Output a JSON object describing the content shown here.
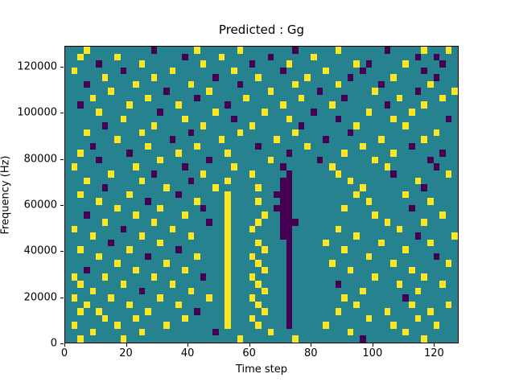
{
  "chart_data": {
    "type": "heatmap",
    "title": "Predicted : Gg",
    "xlabel": "Time step",
    "ylabel": "Frequency (Hz)",
    "x_range": [
      0,
      128
    ],
    "y_range": [
      0,
      129000
    ],
    "x_ticks": [
      0,
      20,
      40,
      60,
      80,
      100,
      120
    ],
    "y_ticks": [
      0,
      20000,
      40000,
      60000,
      80000,
      100000,
      120000
    ],
    "grid": {
      "cols": 64,
      "rows": 43
    },
    "colors": {
      "mid": "#26828e",
      "high": "#fde725",
      "low": "#440154",
      "figure_bg": "#ffffff",
      "axis": "#000000"
    },
    "value_map": {
      "mid": 0,
      "high": 1,
      "low": -1
    },
    "legend": "none",
    "yellow_cells": [
      [
        0,
        3
      ],
      [
        0,
        21
      ],
      [
        0,
        28
      ],
      [
        0,
        44
      ],
      [
        0,
        58
      ],
      [
        0,
        62
      ],
      [
        1,
        2
      ],
      [
        1,
        8
      ],
      [
        1,
        25
      ],
      [
        1,
        40
      ],
      [
        2,
        12
      ],
      [
        2,
        22
      ],
      [
        2,
        36
      ],
      [
        2,
        47
      ],
      [
        2,
        55
      ],
      [
        3,
        1
      ],
      [
        3,
        17
      ],
      [
        3,
        27
      ],
      [
        3,
        42
      ],
      [
        4,
        6
      ],
      [
        4,
        14
      ],
      [
        4,
        31
      ],
      [
        4,
        39
      ],
      [
        4,
        53
      ],
      [
        5,
        11
      ],
      [
        5,
        20
      ],
      [
        5,
        37
      ],
      [
        5,
        44
      ],
      [
        5,
        59
      ],
      [
        6,
        7
      ],
      [
        6,
        23
      ],
      [
        6,
        33
      ],
      [
        6,
        50
      ],
      [
        6,
        63
      ],
      [
        7,
        4
      ],
      [
        7,
        13
      ],
      [
        7,
        29
      ],
      [
        7,
        38
      ],
      [
        7,
        54
      ],
      [
        7,
        61
      ],
      [
        8,
        10
      ],
      [
        8,
        18
      ],
      [
        8,
        35
      ],
      [
        8,
        43
      ],
      [
        8,
        58
      ],
      [
        9,
        5
      ],
      [
        9,
        24
      ],
      [
        9,
        32
      ],
      [
        9,
        49
      ],
      [
        9,
        56
      ],
      [
        10,
        9
      ],
      [
        10,
        19
      ],
      [
        10,
        36
      ],
      [
        10,
        53
      ],
      [
        11,
        14
      ],
      [
        11,
        22
      ],
      [
        11,
        30
      ],
      [
        11,
        47
      ],
      [
        11,
        55
      ],
      [
        12,
        3
      ],
      [
        12,
        12
      ],
      [
        12,
        28
      ],
      [
        12,
        37
      ],
      [
        12,
        60
      ],
      [
        13,
        8
      ],
      [
        13,
        25
      ],
      [
        13,
        34
      ],
      [
        13,
        51
      ],
      [
        13,
        58
      ],
      [
        14,
        13
      ],
      [
        14,
        21
      ],
      [
        14,
        39
      ],
      [
        14,
        48
      ],
      [
        15,
        2
      ],
      [
        15,
        18
      ],
      [
        15,
        26
      ],
      [
        15,
        45
      ],
      [
        15,
        53
      ],
      [
        16,
        15
      ],
      [
        16,
        33
      ],
      [
        16,
        50
      ],
      [
        17,
        1
      ],
      [
        17,
        11
      ],
      [
        17,
        27
      ],
      [
        17,
        43
      ],
      [
        17,
        52
      ],
      [
        18,
        7
      ],
      [
        18,
        22
      ],
      [
        18,
        30
      ],
      [
        18,
        44
      ],
      [
        18,
        62
      ],
      [
        19,
        3
      ],
      [
        19,
        12
      ],
      [
        19,
        26
      ],
      [
        19,
        46
      ],
      [
        19,
        57
      ],
      [
        20,
        16
      ],
      [
        20,
        24
      ],
      [
        20,
        31
      ],
      [
        20,
        48
      ],
      [
        21,
        2
      ],
      [
        21,
        10
      ],
      [
        21,
        26
      ],
      [
        21,
        47
      ],
      [
        21,
        55
      ],
      [
        22,
        5
      ],
      [
        22,
        21
      ],
      [
        22,
        26
      ],
      [
        22,
        31
      ],
      [
        22,
        49
      ],
      [
        22,
        59
      ],
      [
        23,
        8
      ],
      [
        23,
        15
      ],
      [
        23,
        26
      ],
      [
        23,
        45
      ],
      [
        24,
        11
      ],
      [
        24,
        19
      ],
      [
        24,
        26
      ],
      [
        24,
        32
      ],
      [
        24,
        50
      ],
      [
        24,
        61
      ],
      [
        25,
        6
      ],
      [
        25,
        14
      ],
      [
        25,
        26
      ],
      [
        25,
        31
      ],
      [
        25,
        52
      ],
      [
        25,
        58
      ],
      [
        26,
        1
      ],
      [
        26,
        17
      ],
      [
        26,
        26
      ],
      [
        26,
        30
      ],
      [
        26,
        44
      ],
      [
        26,
        54
      ],
      [
        27,
        4
      ],
      [
        27,
        12
      ],
      [
        27,
        20
      ],
      [
        27,
        26
      ],
      [
        27,
        47
      ],
      [
        27,
        63
      ],
      [
        28,
        15
      ],
      [
        28,
        26
      ],
      [
        28,
        31
      ],
      [
        28,
        42
      ],
      [
        28,
        51
      ],
      [
        28,
        59
      ],
      [
        29,
        2
      ],
      [
        29,
        10
      ],
      [
        29,
        26
      ],
      [
        29,
        32
      ],
      [
        29,
        45
      ],
      [
        29,
        55
      ],
      [
        30,
        5
      ],
      [
        30,
        21
      ],
      [
        30,
        26
      ],
      [
        30,
        30
      ],
      [
        30,
        49
      ],
      [
        31,
        8
      ],
      [
        31,
        16
      ],
      [
        31,
        26
      ],
      [
        31,
        31
      ],
      [
        31,
        43
      ],
      [
        31,
        53
      ],
      [
        31,
        62
      ],
      [
        32,
        11
      ],
      [
        32,
        19
      ],
      [
        32,
        26
      ],
      [
        32,
        32
      ],
      [
        32,
        46
      ],
      [
        32,
        56
      ],
      [
        33,
        1
      ],
      [
        33,
        6
      ],
      [
        33,
        14
      ],
      [
        33,
        26
      ],
      [
        33,
        30
      ],
      [
        33,
        50
      ],
      [
        33,
        58
      ],
      [
        34,
        2
      ],
      [
        34,
        9
      ],
      [
        34,
        17
      ],
      [
        34,
        26
      ],
      [
        34,
        31
      ],
      [
        34,
        54
      ],
      [
        34,
        61
      ],
      [
        35,
        4
      ],
      [
        35,
        20
      ],
      [
        35,
        26
      ],
      [
        35,
        32
      ],
      [
        35,
        48
      ],
      [
        35,
        57
      ],
      [
        36,
        1
      ],
      [
        36,
        7
      ],
      [
        36,
        15
      ],
      [
        36,
        23
      ],
      [
        36,
        26
      ],
      [
        36,
        30
      ],
      [
        36,
        45
      ],
      [
        37,
        3
      ],
      [
        37,
        10
      ],
      [
        37,
        18
      ],
      [
        37,
        26
      ],
      [
        37,
        31
      ],
      [
        37,
        47
      ],
      [
        37,
        56
      ],
      [
        37,
        62
      ],
      [
        38,
        2
      ],
      [
        38,
        5
      ],
      [
        38,
        13
      ],
      [
        38,
        26
      ],
      [
        38,
        32
      ],
      [
        38,
        44
      ],
      [
        38,
        52
      ],
      [
        38,
        59
      ],
      [
        39,
        6
      ],
      [
        39,
        11
      ],
      [
        39,
        19
      ],
      [
        39,
        26
      ],
      [
        39,
        30
      ],
      [
        39,
        49
      ],
      [
        39,
        57
      ],
      [
        40,
        1
      ],
      [
        40,
        8
      ],
      [
        40,
        16
      ],
      [
        40,
        26
      ],
      [
        40,
        31
      ],
      [
        40,
        42
      ],
      [
        40,
        53
      ],
      [
        40,
        60
      ],
      [
        41,
        4
      ],
      [
        41,
        12
      ],
      [
        41,
        33
      ],
      [
        41,
        46
      ],
      [
        41,
        55
      ],
      [
        42,
        2
      ],
      [
        42,
        9
      ],
      [
        42,
        28
      ],
      [
        42,
        37
      ],
      [
        42,
        58
      ]
    ],
    "purple_cells": [
      [
        0,
        14
      ],
      [
        0,
        37
      ],
      [
        0,
        52
      ],
      [
        1,
        19
      ],
      [
        1,
        33
      ],
      [
        1,
        57
      ],
      [
        1,
        60
      ],
      [
        2,
        5
      ],
      [
        2,
        30
      ],
      [
        2,
        49
      ],
      [
        2,
        61
      ],
      [
        3,
        9
      ],
      [
        3,
        35
      ],
      [
        3,
        48
      ],
      [
        3,
        58
      ],
      [
        4,
        24
      ],
      [
        4,
        46
      ],
      [
        4,
        60
      ],
      [
        5,
        3
      ],
      [
        5,
        28
      ],
      [
        5,
        51
      ],
      [
        6,
        16
      ],
      [
        6,
        41
      ],
      [
        6,
        57
      ],
      [
        7,
        21
      ],
      [
        7,
        45
      ],
      [
        8,
        2
      ],
      [
        8,
        26
      ],
      [
        8,
        52
      ],
      [
        9,
        15
      ],
      [
        9,
        40
      ],
      [
        10,
        27
      ],
      [
        10,
        44
      ],
      [
        10,
        62
      ],
      [
        11,
        6
      ],
      [
        11,
        38
      ],
      [
        12,
        20
      ],
      [
        12,
        46
      ],
      [
        13,
        17
      ],
      [
        13,
        42
      ],
      [
        14,
        4
      ],
      [
        14,
        31
      ],
      [
        14,
        56
      ],
      [
        15,
        10
      ],
      [
        15,
        36
      ],
      [
        15,
        61
      ],
      [
        16,
        5
      ],
      [
        16,
        23
      ],
      [
        16,
        41
      ],
      [
        16,
        59
      ],
      [
        17,
        19
      ],
      [
        17,
        35
      ],
      [
        17,
        60
      ],
      [
        18,
        14
      ],
      [
        18,
        36
      ],
      [
        18,
        53
      ],
      [
        19,
        20
      ],
      [
        19,
        35
      ],
      [
        19,
        36
      ],
      [
        20,
        6
      ],
      [
        20,
        35
      ],
      [
        20,
        36
      ],
      [
        20,
        58
      ],
      [
        21,
        18
      ],
      [
        21,
        34
      ],
      [
        21,
        35
      ],
      [
        21,
        36
      ],
      [
        22,
        13
      ],
      [
        22,
        35
      ],
      [
        22,
        36
      ],
      [
        23,
        22
      ],
      [
        23,
        34
      ],
      [
        23,
        35
      ],
      [
        23,
        36
      ],
      [
        23,
        56
      ],
      [
        24,
        3
      ],
      [
        24,
        35
      ],
      [
        24,
        36
      ],
      [
        25,
        23
      ],
      [
        25,
        35
      ],
      [
        25,
        36
      ],
      [
        25,
        37
      ],
      [
        26,
        9
      ],
      [
        26,
        35
      ],
      [
        26,
        36
      ],
      [
        27,
        35
      ],
      [
        27,
        36
      ],
      [
        27,
        57
      ],
      [
        28,
        7
      ],
      [
        28,
        36
      ],
      [
        29,
        18
      ],
      [
        29,
        36
      ],
      [
        30,
        13
      ],
      [
        30,
        36
      ],
      [
        30,
        60
      ],
      [
        31,
        36
      ],
      [
        32,
        3
      ],
      [
        32,
        36
      ],
      [
        33,
        22
      ],
      [
        33,
        36
      ],
      [
        34,
        36
      ],
      [
        34,
        44
      ],
      [
        35,
        12
      ],
      [
        35,
        36
      ],
      [
        36,
        36
      ],
      [
        36,
        55
      ],
      [
        37,
        36
      ],
      [
        38,
        21
      ],
      [
        38,
        36
      ],
      [
        39,
        36
      ],
      [
        40,
        36
      ],
      [
        41,
        24
      ],
      [
        42,
        48
      ]
    ]
  }
}
